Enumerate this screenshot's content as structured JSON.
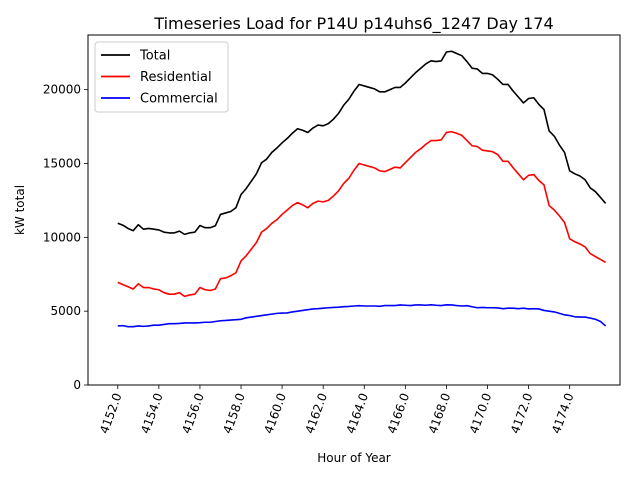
{
  "chart_data": {
    "type": "line",
    "title": "Timeseries Load for P14U p14uhs6_1247  Day 174",
    "xlabel": "Hour of Year",
    "ylabel": "kW total",
    "xlim": [
      4150.55,
      4176.45
    ],
    "ylim": [
      0,
      23700
    ],
    "x_start": 4152.0,
    "x_step": 0.25,
    "x_ticks": [
      4152,
      4154,
      4156,
      4158,
      4160,
      4162,
      4164,
      4166,
      4168,
      4170,
      4172,
      4174
    ],
    "x_tick_labels": [
      "4152.0",
      "4154.0",
      "4156.0",
      "4158.0",
      "4160.0",
      "4162.0",
      "4164.0",
      "4166.0",
      "4168.0",
      "4170.0",
      "4172.0",
      "4174.0"
    ],
    "y_ticks": [
      0,
      5000,
      10000,
      15000,
      20000
    ],
    "y_tick_labels": [
      "0",
      "5000",
      "10000",
      "15000",
      "20000"
    ],
    "legend_position": "top-left",
    "series": [
      {
        "name": "Total",
        "color": "#000000",
        "values": [
          10950,
          10820,
          10600,
          10450,
          10850,
          10550,
          10600,
          10550,
          10500,
          10350,
          10300,
          10300,
          10420,
          10200,
          10300,
          10350,
          10800,
          10650,
          10650,
          10780,
          11550,
          11650,
          11750,
          12000,
          12900,
          13300,
          13800,
          14300,
          15050,
          15300,
          15750,
          16050,
          16400,
          16700,
          17050,
          17350,
          17250,
          17100,
          17400,
          17600,
          17550,
          17700,
          18000,
          18400,
          18950,
          19350,
          19900,
          20350,
          20250,
          20150,
          20050,
          19850,
          19850,
          20000,
          20150,
          20150,
          20450,
          20800,
          21150,
          21450,
          21750,
          21950,
          21900,
          21950,
          22550,
          22600,
          22450,
          22300,
          21900,
          21450,
          21400,
          21100,
          21100,
          21000,
          20700,
          20350,
          20350,
          19900,
          19500,
          19100,
          19400,
          19450,
          19000,
          18650,
          17200,
          16850,
          16250,
          15750,
          14500,
          14300,
          14150,
          13900,
          13350,
          13100,
          12700,
          12300
        ]
      },
      {
        "name": "Residential",
        "color": "#ff0000",
        "values": [
          6950,
          6800,
          6650,
          6500,
          6850,
          6600,
          6600,
          6500,
          6450,
          6250,
          6150,
          6150,
          6250,
          6000,
          6100,
          6150,
          6600,
          6450,
          6400,
          6500,
          7200,
          7250,
          7400,
          7600,
          8400,
          8750,
          9200,
          9650,
          10350,
          10600,
          10950,
          11200,
          11550,
          11850,
          12150,
          12350,
          12200,
          12000,
          12300,
          12450,
          12400,
          12500,
          12800,
          13150,
          13650,
          14000,
          14550,
          15000,
          14900,
          14800,
          14700,
          14500,
          14450,
          14600,
          14750,
          14700,
          15050,
          15400,
          15750,
          16000,
          16300,
          16550,
          16550,
          16600,
          17100,
          17150,
          17050,
          16900,
          16550,
          16200,
          16150,
          15900,
          15850,
          15800,
          15600,
          15150,
          15150,
          14700,
          14300,
          13900,
          14200,
          14250,
          13850,
          13550,
          12150,
          11850,
          11450,
          11000,
          9900,
          9700,
          9550,
          9350,
          8900,
          8700,
          8500,
          8300
        ]
      },
      {
        "name": "Commercial",
        "color": "#0000ff",
        "values": [
          4000,
          4020,
          3950,
          3950,
          4000,
          3970,
          4000,
          4050,
          4050,
          4100,
          4150,
          4150,
          4170,
          4200,
          4200,
          4200,
          4220,
          4250,
          4250,
          4300,
          4350,
          4370,
          4400,
          4420,
          4450,
          4550,
          4600,
          4650,
          4700,
          4750,
          4800,
          4850,
          4870,
          4880,
          4950,
          5000,
          5050,
          5100,
          5150,
          5170,
          5200,
          5230,
          5250,
          5270,
          5300,
          5320,
          5350,
          5370,
          5350,
          5350,
          5350,
          5330,
          5380,
          5380,
          5380,
          5420,
          5400,
          5380,
          5420,
          5420,
          5400,
          5430,
          5400,
          5380,
          5430,
          5420,
          5380,
          5350,
          5370,
          5300,
          5230,
          5250,
          5230,
          5230,
          5220,
          5170,
          5200,
          5200,
          5170,
          5200,
          5150,
          5170,
          5150,
          5050,
          5000,
          4950,
          4850,
          4750,
          4700,
          4620,
          4600,
          4600,
          4530,
          4450,
          4300,
          4000
        ]
      }
    ]
  }
}
